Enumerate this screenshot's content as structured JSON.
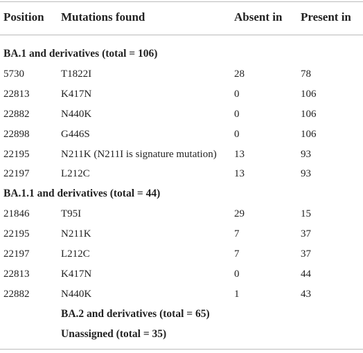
{
  "table": {
    "columns": [
      "Position",
      "Mutations found",
      "Absent in",
      "Present in"
    ],
    "sections": [
      {
        "title": "BA.1 and derivatives (total = 106)",
        "rows": [
          [
            "5730",
            "T1822I",
            "28",
            "78"
          ],
          [
            "22813",
            "K417N",
            "0",
            "106"
          ],
          [
            "22882",
            "N440K",
            "0",
            "106"
          ],
          [
            "22898",
            "G446S",
            "0",
            "106"
          ],
          [
            "22195",
            "N211K (N211I is signature mutation)",
            "13",
            "93"
          ],
          [
            "22197",
            "L212C",
            "13",
            "93"
          ]
        ]
      },
      {
        "title": "BA.1.1 and derivatives (total = 44)",
        "rows": [
          [
            "21846",
            "T95I",
            "29",
            "15"
          ],
          [
            "22195",
            "N211K",
            "7",
            "37"
          ],
          [
            "22197",
            "L212C",
            "7",
            "37"
          ],
          [
            "22813",
            "K417N",
            "0",
            "44"
          ],
          [
            "22882",
            "N440K",
            "1",
            "43"
          ]
        ]
      },
      {
        "title": "BA.2 and derivatives (total = 65)",
        "rows": []
      },
      {
        "title": "Unassigned (total = 35)",
        "rows": []
      }
    ]
  }
}
